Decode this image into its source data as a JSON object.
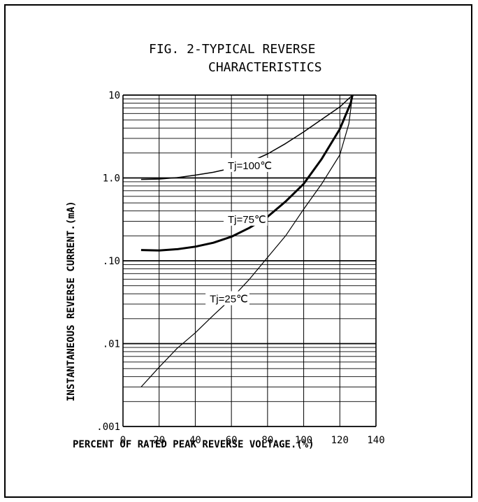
{
  "chart_data": {
    "type": "line",
    "title": "FIG. 2-TYPICAL REVERSE",
    "subtitle": "CHARACTERISTICS",
    "xlabel": "PERCENT OF RATED PEAK REVERSE VOLTAGE.(%)",
    "ylabel": "INSTANTANEOUS REVERSE CURRENT.(mA)",
    "xlim": [
      0,
      140
    ],
    "ylim": [
      0.001,
      10
    ],
    "yscale": "log",
    "grid": true,
    "x_ticks": [
      0,
      20,
      40,
      60,
      80,
      100,
      120,
      140
    ],
    "x_tick_labels": [
      "0",
      "20",
      "40",
      "60",
      "80",
      "100",
      "120",
      "140"
    ],
    "y_ticks": [
      0.001,
      0.01,
      0.1,
      1,
      10
    ],
    "y_tick_labels": [
      ".001",
      ".01",
      ".10",
      "1.0",
      "10"
    ],
    "series": [
      {
        "name": "Tj=100℃",
        "label_at": [
          58,
          1.38
        ],
        "line_width": 1.5,
        "x": [
          10,
          20,
          30,
          40,
          50,
          60,
          70,
          80,
          90,
          100,
          110,
          120,
          127
        ],
        "y": [
          0.96,
          0.97,
          1.01,
          1.08,
          1.17,
          1.31,
          1.55,
          1.95,
          2.6,
          3.6,
          5.1,
          7.2,
          10
        ]
      },
      {
        "name": "Tj=75℃",
        "label_at": [
          58,
          0.31
        ],
        "line_width": 3,
        "x": [
          10,
          20,
          30,
          40,
          50,
          60,
          70,
          80,
          90,
          100,
          110,
          120,
          126,
          127
        ],
        "y": [
          0.135,
          0.133,
          0.138,
          0.148,
          0.165,
          0.195,
          0.25,
          0.34,
          0.52,
          0.85,
          1.7,
          3.9,
          8.0,
          10
        ]
      },
      {
        "name": "Tj=25℃",
        "label_at": [
          48,
          0.034
        ],
        "line_width": 1.2,
        "x": [
          10,
          20,
          30,
          40,
          50,
          60,
          70,
          80,
          90,
          100,
          110,
          120,
          125,
          127
        ],
        "y": [
          0.003,
          0.0052,
          0.0088,
          0.0135,
          0.022,
          0.035,
          0.06,
          0.11,
          0.2,
          0.42,
          0.85,
          1.9,
          4.5,
          10
        ]
      }
    ]
  }
}
